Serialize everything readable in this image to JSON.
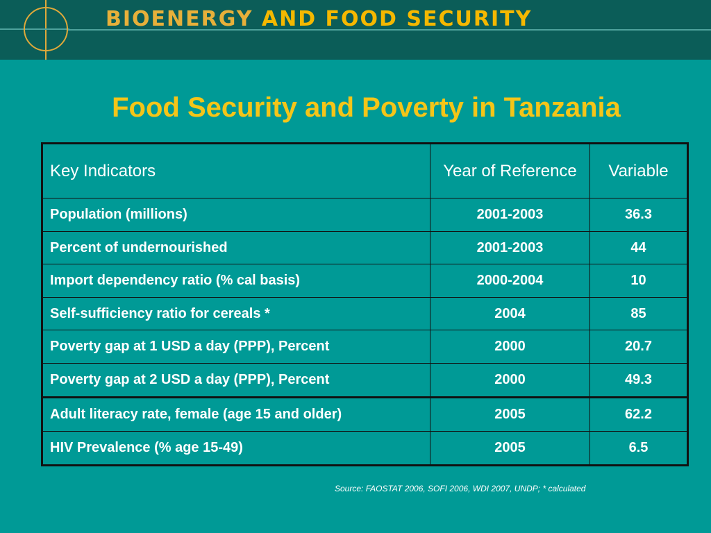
{
  "banner": {
    "title_part1": "BIOENERGY",
    "title_part2": "AND FOOD SECURITY"
  },
  "slide": {
    "title": "Food Security and Poverty in Tanzania"
  },
  "table": {
    "headers": [
      "Key Indicators",
      "Year of Reference",
      "Variable"
    ],
    "rows": [
      [
        "Population (millions)",
        "2001-2003",
        "36.3"
      ],
      [
        "Percent of undernourished",
        "2001-2003",
        "44"
      ],
      [
        "Import dependency ratio (% cal basis)",
        "2000-2004",
        "10"
      ],
      [
        "Self-sufficiency ratio for cereals *",
        "2004",
        "85"
      ],
      [
        "Poverty gap at 1 USD a day (PPP), Percent",
        "2000",
        "20.7"
      ],
      [
        "Poverty gap at 2 USD a day (PPP), Percent",
        "2000",
        "49.3"
      ],
      [
        "Adult literacy rate, female (age 15 and older)",
        "2005",
        "62.2"
      ],
      [
        "HIV Prevalence (% age 15-49)",
        "2005",
        "6.5"
      ]
    ]
  },
  "footer": {
    "source": "Source:  FAOSTAT 2006, SOFI 2006, WDI 2007, UNDP; * calculated"
  },
  "colors": {
    "background": "#009a96",
    "banner": "#0b5d58",
    "title": "#f5c518"
  }
}
